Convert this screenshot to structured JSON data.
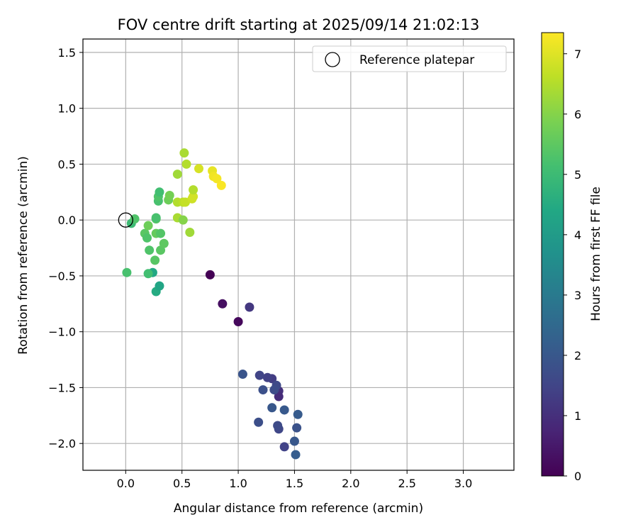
{
  "chart_data": {
    "type": "scatter",
    "title": "FOV centre drift starting at 2025/09/14 21:02:13",
    "xlabel": "Angular distance from reference (arcmin)",
    "ylabel": "Rotation from reference (arcmin)",
    "xlim": [
      -0.38,
      3.45
    ],
    "ylim": [
      -2.24,
      1.62
    ],
    "xticks": [
      0.0,
      0.5,
      1.0,
      1.5,
      2.0,
      2.5,
      3.0
    ],
    "xtick_labels": [
      "0.0",
      "0.5",
      "1.0",
      "1.5",
      "2.0",
      "2.5",
      "3.0"
    ],
    "yticks": [
      1.5,
      1.0,
      0.5,
      0.0,
      -0.5,
      -1.0,
      -1.5,
      -2.0
    ],
    "ytick_labels": [
      "1.5",
      "1.0",
      "0.5",
      "0.0",
      "−0.5",
      "−1.0",
      "−1.5",
      "−2.0"
    ],
    "grid": true,
    "colorbar": {
      "label": "Hours from first FF file",
      "min": 0,
      "max": 7.35,
      "ticks": [
        0,
        1,
        2,
        3,
        4,
        5,
        6,
        7
      ],
      "tick_labels": [
        "0",
        "1",
        "2",
        "3",
        "4",
        "5",
        "6",
        "7"
      ],
      "colormap": "viridis"
    },
    "legend": {
      "label": "Reference platepar",
      "location": "top-right"
    },
    "reference_point": {
      "x": 0.0,
      "y": 0.0
    },
    "points": [
      {
        "x": 0.75,
        "y": -0.49,
        "h": 0.0
      },
      {
        "x": 1.0,
        "y": -0.91,
        "h": 0.15
      },
      {
        "x": 0.86,
        "y": -0.75,
        "h": 0.3
      },
      {
        "x": 1.1,
        "y": -0.78,
        "h": 1.2
      },
      {
        "x": 1.36,
        "y": -1.53,
        "h": 1.0
      },
      {
        "x": 1.36,
        "y": -1.58,
        "h": 0.9
      },
      {
        "x": 1.3,
        "y": -1.42,
        "h": 1.3
      },
      {
        "x": 1.26,
        "y": -1.41,
        "h": 1.4
      },
      {
        "x": 1.19,
        "y": -1.39,
        "h": 1.5
      },
      {
        "x": 1.34,
        "y": -1.48,
        "h": 1.6
      },
      {
        "x": 1.32,
        "y": -1.52,
        "h": 1.7
      },
      {
        "x": 1.22,
        "y": -1.52,
        "h": 1.8
      },
      {
        "x": 1.04,
        "y": -1.38,
        "h": 1.9
      },
      {
        "x": 1.3,
        "y": -1.68,
        "h": 2.0
      },
      {
        "x": 1.41,
        "y": -1.7,
        "h": 2.05
      },
      {
        "x": 1.53,
        "y": -1.74,
        "h": 2.1
      },
      {
        "x": 1.36,
        "y": -1.87,
        "h": 1.55
      },
      {
        "x": 1.35,
        "y": -1.84,
        "h": 1.65
      },
      {
        "x": 1.18,
        "y": -1.81,
        "h": 1.75
      },
      {
        "x": 1.52,
        "y": -1.86,
        "h": 1.85
      },
      {
        "x": 1.41,
        "y": -2.03,
        "h": 1.45
      },
      {
        "x": 1.5,
        "y": -1.98,
        "h": 2.0
      },
      {
        "x": 1.51,
        "y": -2.1,
        "h": 2.15
      },
      {
        "x": 0.27,
        "y": -0.64,
        "h": 4.5
      },
      {
        "x": 0.3,
        "y": -0.59,
        "h": 4.3
      },
      {
        "x": 0.24,
        "y": -0.47,
        "h": 4.4
      },
      {
        "x": 0.2,
        "y": -0.48,
        "h": 5.1
      },
      {
        "x": 0.01,
        "y": -0.47,
        "h": 5.2
      },
      {
        "x": 0.26,
        "y": -0.36,
        "h": 5.4
      },
      {
        "x": 0.21,
        "y": -0.27,
        "h": 5.3
      },
      {
        "x": 0.31,
        "y": -0.27,
        "h": 5.45
      },
      {
        "x": 0.34,
        "y": -0.21,
        "h": 5.5
      },
      {
        "x": 0.27,
        "y": -0.12,
        "h": 5.6
      },
      {
        "x": 0.31,
        "y": -0.12,
        "h": 5.35
      },
      {
        "x": 0.17,
        "y": -0.12,
        "h": 5.45
      },
      {
        "x": 0.19,
        "y": -0.16,
        "h": 5.3
      },
      {
        "x": 0.2,
        "y": -0.05,
        "h": 5.7
      },
      {
        "x": 0.05,
        "y": -0.03,
        "h": 5.0
      },
      {
        "x": 0.08,
        "y": 0.01,
        "h": 5.3
      },
      {
        "x": 0.27,
        "y": 0.01,
        "h": 5.4
      },
      {
        "x": 0.27,
        "y": 0.02,
        "h": 5.2
      },
      {
        "x": 0.29,
        "y": 0.17,
        "h": 5.2
      },
      {
        "x": 0.29,
        "y": 0.21,
        "h": 5.3
      },
      {
        "x": 0.3,
        "y": 0.25,
        "h": 5.1
      },
      {
        "x": 0.38,
        "y": 0.18,
        "h": 5.7
      },
      {
        "x": 0.39,
        "y": 0.22,
        "h": 5.8
      },
      {
        "x": 0.46,
        "y": 0.41,
        "h": 6.3
      },
      {
        "x": 0.52,
        "y": 0.6,
        "h": 6.4
      },
      {
        "x": 0.54,
        "y": 0.5,
        "h": 6.5
      },
      {
        "x": 0.46,
        "y": 0.16,
        "h": 6.5
      },
      {
        "x": 0.51,
        "y": 0.16,
        "h": 6.6
      },
      {
        "x": 0.53,
        "y": 0.16,
        "h": 6.7
      },
      {
        "x": 0.59,
        "y": 0.19,
        "h": 6.8
      },
      {
        "x": 0.6,
        "y": 0.21,
        "h": 6.85
      },
      {
        "x": 0.6,
        "y": 0.27,
        "h": 6.5
      },
      {
        "x": 0.46,
        "y": 0.02,
        "h": 6.4
      },
      {
        "x": 0.51,
        "y": 0.0,
        "h": 6.0
      },
      {
        "x": 0.57,
        "y": -0.11,
        "h": 6.3
      },
      {
        "x": 0.65,
        "y": 0.46,
        "h": 6.9
      },
      {
        "x": 0.77,
        "y": 0.44,
        "h": 7.1
      },
      {
        "x": 0.78,
        "y": 0.39,
        "h": 7.2
      },
      {
        "x": 0.81,
        "y": 0.37,
        "h": 7.25
      },
      {
        "x": 0.85,
        "y": 0.31,
        "h": 7.3
      }
    ]
  }
}
